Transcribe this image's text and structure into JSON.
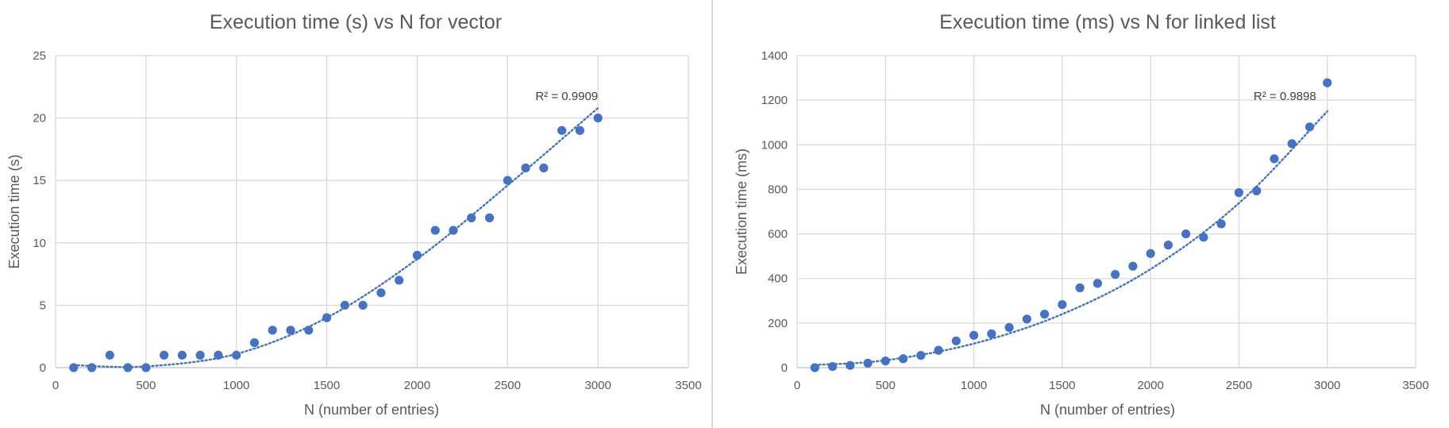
{
  "chart_data": [
    {
      "type": "scatter",
      "title": "Execution time (s) vs N for vector",
      "xlabel": "N (number of entries)",
      "ylabel": "Execution time (s)",
      "xlim": [
        0,
        3500
      ],
      "ylim": [
        0,
        25
      ],
      "x_ticks": [
        0,
        500,
        1000,
        1500,
        2000,
        2500,
        3000,
        3500
      ],
      "y_ticks": [
        0,
        5,
        10,
        15,
        20,
        25
      ],
      "x_tick_labels": [
        "0",
        "500",
        "1000",
        "1500",
        "2000",
        "2500",
        "3000",
        "3500"
      ],
      "y_tick_labels": [
        "0",
        "5",
        "10",
        "15",
        "20",
        "25"
      ],
      "grid": true,
      "marker_color": "#4472C4",
      "trendline_color": "#4472C4",
      "points": [
        [
          100,
          0
        ],
        [
          200,
          0
        ],
        [
          300,
          1
        ],
        [
          400,
          0
        ],
        [
          500,
          0
        ],
        [
          600,
          1
        ],
        [
          700,
          1
        ],
        [
          800,
          1
        ],
        [
          900,
          1
        ],
        [
          1000,
          1
        ],
        [
          1100,
          2
        ],
        [
          1200,
          3
        ],
        [
          1300,
          3
        ],
        [
          1400,
          3
        ],
        [
          1500,
          4
        ],
        [
          1600,
          5
        ],
        [
          1700,
          5
        ],
        [
          1800,
          6
        ],
        [
          1900,
          7
        ],
        [
          2000,
          9
        ],
        [
          2100,
          11
        ],
        [
          2200,
          11
        ],
        [
          2300,
          12
        ],
        [
          2400,
          12
        ],
        [
          2500,
          15
        ],
        [
          2600,
          16
        ],
        [
          2700,
          16
        ],
        [
          2800,
          19
        ],
        [
          2900,
          19
        ],
        [
          3000,
          20
        ]
      ],
      "trendline": {
        "type": "polynomial",
        "x_range": [
          100,
          3000
        ],
        "points": [
          [
            100,
            0.2
          ],
          [
            500,
            0.1
          ],
          [
            1000,
            1.1
          ],
          [
            1500,
            4.0
          ],
          [
            2000,
            8.7
          ],
          [
            2500,
            14.6
          ],
          [
            3000,
            20.8
          ]
        ],
        "r2_label": "R² = 0.9909"
      }
    },
    {
      "type": "scatter",
      "title": "Execution time (ms) vs N for linked list",
      "xlabel": "N (number of entries)",
      "ylabel": "Execution time (ms)",
      "xlim": [
        0,
        3500
      ],
      "ylim": [
        0,
        1400
      ],
      "x_ticks": [
        0,
        500,
        1000,
        1500,
        2000,
        2500,
        3000,
        3500
      ],
      "y_ticks": [
        0,
        200,
        400,
        600,
        800,
        1000,
        1200,
        1400
      ],
      "x_tick_labels": [
        "0",
        "500",
        "1000",
        "1500",
        "2000",
        "2500",
        "3000",
        "3500"
      ],
      "y_tick_labels": [
        "0",
        "200",
        "400",
        "600",
        "800",
        "1000",
        "1200",
        "1400"
      ],
      "grid": true,
      "marker_color": "#4472C4",
      "trendline_color": "#4472C4",
      "points": [
        [
          100,
          0
        ],
        [
          200,
          5
        ],
        [
          300,
          10
        ],
        [
          400,
          20
        ],
        [
          500,
          30
        ],
        [
          600,
          40
        ],
        [
          700,
          55
        ],
        [
          800,
          78
        ],
        [
          900,
          120
        ],
        [
          1000,
          145
        ],
        [
          1100,
          152
        ],
        [
          1200,
          180
        ],
        [
          1300,
          218
        ],
        [
          1400,
          240
        ],
        [
          1500,
          283
        ],
        [
          1600,
          358
        ],
        [
          1700,
          378
        ],
        [
          1800,
          418
        ],
        [
          1900,
          455
        ],
        [
          2000,
          512
        ],
        [
          2100,
          550
        ],
        [
          2200,
          600
        ],
        [
          2300,
          585
        ],
        [
          2400,
          645
        ],
        [
          2500,
          785
        ],
        [
          2600,
          793
        ],
        [
          2700,
          937
        ],
        [
          2800,
          1005
        ],
        [
          2900,
          1080
        ],
        [
          3000,
          1278
        ]
      ],
      "trendline": {
        "type": "polynomial",
        "x_range": [
          100,
          3000
        ],
        "points": [
          [
            100,
            12
          ],
          [
            500,
            33
          ],
          [
            1000,
            108
          ],
          [
            1500,
            240
          ],
          [
            2000,
            442
          ],
          [
            2500,
            738
          ],
          [
            3000,
            1150
          ]
        ],
        "r2_label": "R² = 0.9898"
      }
    }
  ]
}
